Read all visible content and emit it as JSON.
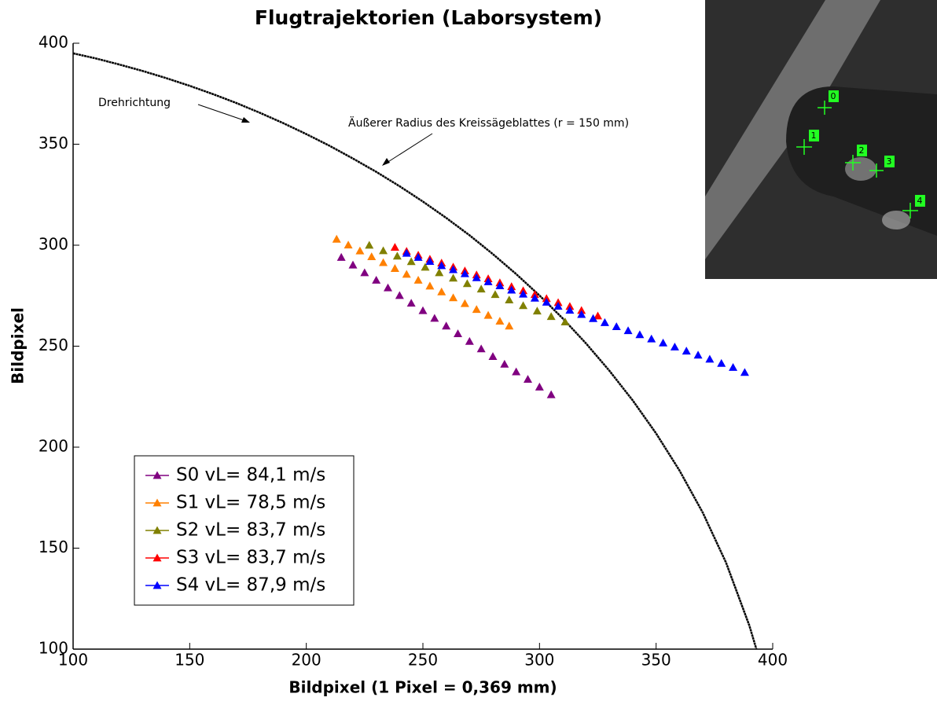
{
  "chart_data": {
    "type": "scatter",
    "title": "Flugtrajektorien (Laborsystem)",
    "x_label": "Bildpixel (1 Pixel = 0,369 mm)",
    "y_label": "Bildpixel",
    "xlim": [
      100,
      400
    ],
    "ylim": [
      100,
      400
    ],
    "xticks": [
      100,
      150,
      200,
      250,
      300,
      350,
      400
    ],
    "yticks": [
      100,
      150,
      200,
      250,
      300,
      350,
      400
    ],
    "grid": false,
    "legend": "lower left",
    "annotations": [
      "Drehrichtung",
      "Äußerer Radius des Kreissägeblattes (r = 150 mm)"
    ],
    "image_labels": [
      "0",
      "1",
      "2",
      "3",
      "4"
    ],
    "curve": {
      "color": "#000000",
      "x": [
        100,
        110,
        120,
        130,
        140,
        150,
        160,
        170,
        180,
        190,
        200,
        210,
        220,
        230,
        240,
        250,
        260,
        270,
        280,
        290,
        300,
        310,
        320,
        330,
        340,
        350,
        360,
        370,
        380,
        390,
        393
      ],
      "values": [
        395,
        392.4,
        389.4,
        386.2,
        382.7,
        378.9,
        374.8,
        370.4,
        365.6,
        360.5,
        355,
        349.2,
        342.9,
        336.3,
        329.2,
        321.6,
        313.5,
        304.9,
        295.6,
        285.7,
        275.1,
        263.7,
        251.3,
        237.8,
        223.1,
        206.8,
        188.5,
        167.6,
        142.8,
        111.6,
        100
      ]
    },
    "series": [
      {
        "name": "S0 vL= 84,1 m/s",
        "color": "#800080",
        "x": [
          215,
          220,
          225,
          230,
          235,
          240,
          245,
          250,
          255,
          260,
          265,
          270,
          275,
          280,
          285,
          290,
          295,
          300,
          305
        ],
        "values": [
          294,
          290.2,
          286.4,
          282.7,
          278.9,
          275.1,
          271.3,
          267.6,
          263.8,
          260,
          256.2,
          252.4,
          248.7,
          244.9,
          241.1,
          237.3,
          233.6,
          229.8,
          226
        ]
      },
      {
        "name": "S1 vL= 78,5 m/s",
        "color": "#ff8000",
        "x": [
          213,
          218,
          223,
          228,
          233,
          238,
          243,
          248,
          253,
          258,
          263,
          268,
          273,
          278,
          283,
          287
        ],
        "values": [
          303,
          300.1,
          297.2,
          294.3,
          291.4,
          288.5,
          285.6,
          282.7,
          279.8,
          276.9,
          274,
          271.1,
          268.2,
          265.3,
          262.4,
          260
        ]
      },
      {
        "name": "S2 vL= 83,7 m/s",
        "color": "#808000",
        "x": [
          227,
          233,
          239,
          245,
          251,
          257,
          263,
          269,
          275,
          281,
          287,
          293,
          299,
          305,
          311
        ],
        "values": [
          300,
          297.3,
          294.6,
          291.9,
          289.1,
          286.4,
          283.7,
          281,
          278.3,
          275.6,
          272.9,
          270.1,
          267.4,
          264.7,
          262
        ]
      },
      {
        "name": "S3 vL= 83,7 m/s",
        "color": "#ff0000",
        "x": [
          238,
          243,
          248,
          253,
          258,
          263,
          268,
          273,
          278,
          283,
          288,
          293,
          298,
          303,
          308,
          313,
          318,
          325
        ],
        "values": [
          299,
          297,
          295.1,
          293.1,
          291.2,
          289.2,
          287.3,
          285.3,
          283.4,
          281.4,
          279.5,
          277.5,
          275.6,
          273.6,
          271.6,
          269.7,
          267.7,
          265
        ]
      },
      {
        "name": "S4 vL= 87,9 m/s",
        "color": "#0000ff",
        "x": [
          243,
          248,
          253,
          258,
          263,
          268,
          273,
          278,
          283,
          288,
          293,
          298,
          303,
          308,
          313,
          318,
          323,
          328,
          333,
          338,
          343,
          348,
          353,
          358,
          363,
          368,
          373,
          378,
          383,
          388
        ],
        "values": [
          296,
          294,
          292,
          289.9,
          287.9,
          285.9,
          283.9,
          281.9,
          279.9,
          277.8,
          275.8,
          273.8,
          271.8,
          269.8,
          267.8,
          265.7,
          263.7,
          261.7,
          259.7,
          257.7,
          255.7,
          253.6,
          251.6,
          249.6,
          247.6,
          245.6,
          243.6,
          241.5,
          239.5,
          237
        ]
      }
    ]
  }
}
